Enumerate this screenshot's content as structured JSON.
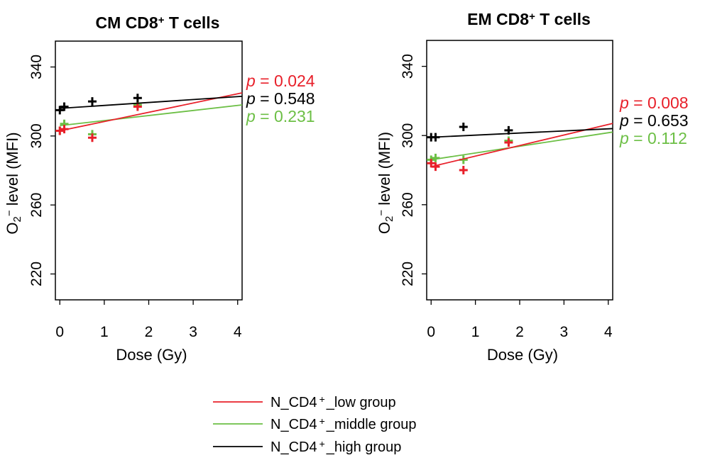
{
  "colors": {
    "low": "#e8202a",
    "middle": "#6cbf45",
    "high": "#000000"
  },
  "legend": [
    {
      "key": "low",
      "label": "N_CD4",
      "sup": "+",
      "suffix": "_low group"
    },
    {
      "key": "middle",
      "label": "N_CD4",
      "sup": "+",
      "suffix": "_middle group"
    },
    {
      "key": "high",
      "label": "N_CD4",
      "sup": "+",
      "suffix": "_high group"
    }
  ],
  "chart_data": [
    {
      "type": "scatter",
      "title": {
        "main": "CM CD8",
        "sup": "+",
        "rest": " T cells"
      },
      "xlabel": "Dose (Gy)",
      "ylabel": {
        "pre": "O",
        "sub": "2",
        "sup": "−",
        "post": " level (MFI)"
      },
      "xlim": [
        -0.1,
        4.1
      ],
      "ylim": [
        205,
        355
      ],
      "xticks": [
        "0",
        "1",
        "2",
        "3",
        "4"
      ],
      "yticks": [
        "220",
        "260",
        "300",
        "340"
      ],
      "pvalues": [
        {
          "key": "low",
          "label": "p",
          "value": " = 0.024"
        },
        {
          "key": "high",
          "label": "p",
          "value": " = 0.548"
        },
        {
          "key": "middle",
          "label": "p",
          "value": " = 0.231"
        }
      ],
      "series": [
        {
          "key": "low",
          "points": [
            [
              0.0,
              303
            ],
            [
              0.1,
              304
            ],
            [
              0.73,
              299
            ],
            [
              1.75,
              317
            ]
          ],
          "fit": [
            [
              0.0,
              303
            ],
            [
              4.1,
              325
            ]
          ]
        },
        {
          "key": "middle",
          "points": [
            [
              0.0,
              303
            ],
            [
              0.1,
              307
            ],
            [
              0.73,
              301
            ],
            [
              1.75,
              318
            ]
          ],
          "fit": [
            [
              0.0,
              306
            ],
            [
              4.1,
              318
            ]
          ]
        },
        {
          "key": "high",
          "points": [
            [
              0.0,
              315
            ],
            [
              0.1,
              317
            ],
            [
              0.73,
              320
            ],
            [
              1.75,
              322
            ]
          ],
          "fit": [
            [
              0.0,
              316
            ],
            [
              4.1,
              323
            ]
          ]
        }
      ]
    },
    {
      "type": "scatter",
      "title": {
        "main": "EM CD8",
        "sup": "+",
        "rest": " T cells"
      },
      "xlabel": "Dose (Gy)",
      "ylabel": {
        "pre": "O",
        "sub": "2",
        "sup": "−",
        "post": " level (MFI)"
      },
      "xlim": [
        -0.1,
        4.1
      ],
      "ylim": [
        205,
        355
      ],
      "xticks": [
        "0",
        "1",
        "2",
        "3",
        "4"
      ],
      "yticks": [
        "220",
        "260",
        "300",
        "340"
      ],
      "pvalues": [
        {
          "key": "low",
          "label": "p",
          "value": " = 0.008"
        },
        {
          "key": "high",
          "label": "p",
          "value": " = 0.653"
        },
        {
          "key": "middle",
          "label": "p",
          "value": " = 0.112"
        }
      ],
      "series": [
        {
          "key": "low",
          "points": [
            [
              0.0,
              284
            ],
            [
              0.1,
              282
            ],
            [
              0.73,
              280
            ],
            [
              1.75,
              296
            ]
          ],
          "fit": [
            [
              0.0,
              282
            ],
            [
              4.1,
              307
            ]
          ]
        },
        {
          "key": "middle",
          "points": [
            [
              0.0,
              286
            ],
            [
              0.1,
              287
            ],
            [
              0.73,
              286
            ],
            [
              1.75,
              297
            ]
          ],
          "fit": [
            [
              0.0,
              286
            ],
            [
              4.1,
              302
            ]
          ]
        },
        {
          "key": "high",
          "points": [
            [
              0.0,
              299
            ],
            [
              0.1,
              299
            ],
            [
              0.73,
              305
            ],
            [
              1.75,
              303
            ]
          ],
          "fit": [
            [
              0.0,
              299
            ],
            [
              4.1,
              304
            ]
          ]
        }
      ]
    }
  ]
}
